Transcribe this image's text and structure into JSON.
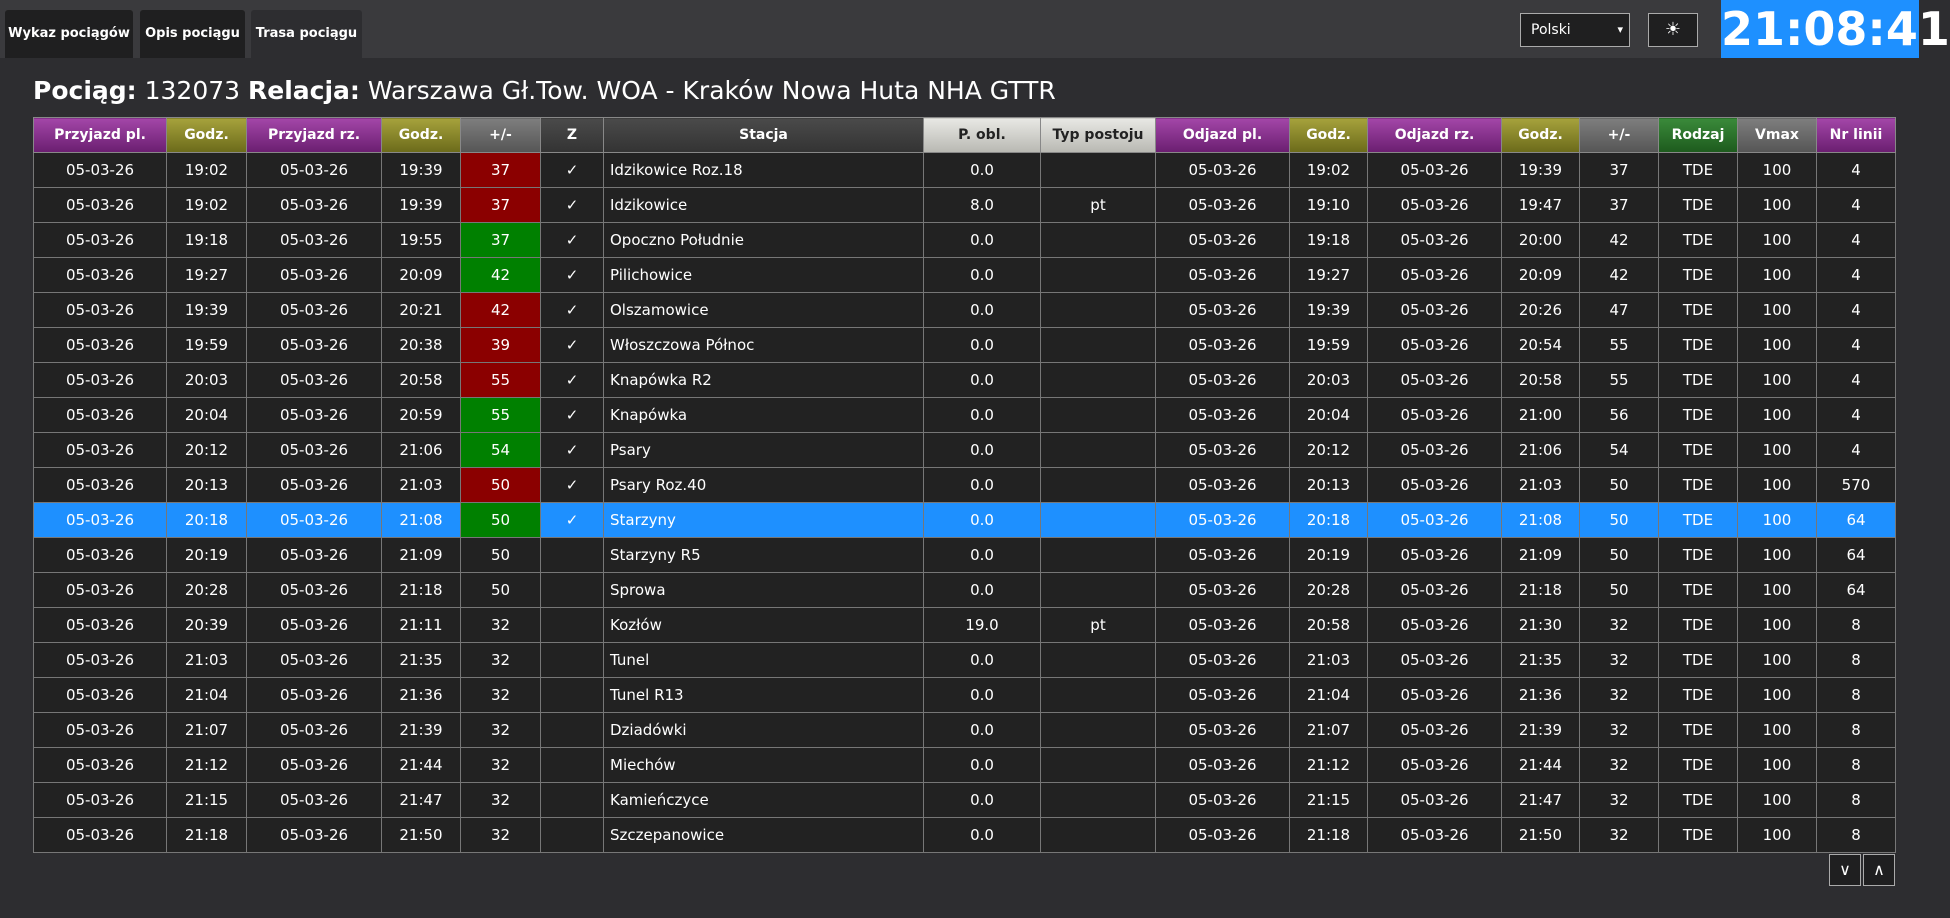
{
  "tabs": [
    "Wykaz pociągów",
    "Opis pociągu",
    "Trasa pociągu"
  ],
  "active_tab": 2,
  "language": "Polski",
  "theme_icon": "☀",
  "clock": "21:08:41",
  "header": {
    "train_label": "Pociąg:",
    "train_number": "132073",
    "route_label": "Relacja:",
    "route": "Warszawa Gł.Tow. WOA - Kraków Nowa Huta NHA GTTR"
  },
  "table": {
    "headers": [
      "Przyjazd pl.",
      "Godz.",
      "Przyjazd rz.",
      "Godz.",
      "+/-",
      "Z",
      "Stacja",
      "P. obl.",
      "Typ postoju",
      "Odjazd pl.",
      "Godz.",
      "Odjazd rz.",
      "Godz.",
      "+/-",
      "Rodzaj",
      "Vmax",
      "Nr linii"
    ],
    "header_colors": [
      "purple",
      "olive",
      "purple",
      "olive",
      "gray",
      "dark",
      "dark",
      "light",
      "light",
      "purple",
      "olive",
      "purple",
      "olive",
      "gray",
      "green",
      "gray",
      "purple"
    ],
    "rows": [
      [
        "05-03-26",
        "19:02",
        "05-03-26",
        "19:39",
        "37",
        "✓",
        "Idzikowice Roz.18",
        "0.0",
        null,
        "05-03-26",
        "19:02",
        "05-03-26",
        "19:39",
        "37",
        "TDE",
        "100",
        "4"
      ],
      [
        "05-03-26",
        "19:02",
        "05-03-26",
        "19:39",
        "37",
        "✓",
        "Idzikowice",
        "8.0",
        "pt",
        "05-03-26",
        "19:10",
        "05-03-26",
        "19:47",
        "37",
        "TDE",
        "100",
        "4"
      ],
      [
        "05-03-26",
        "19:18",
        "05-03-26",
        "19:55",
        "37",
        "✓",
        "Opoczno Południe",
        "0.0",
        null,
        "05-03-26",
        "19:18",
        "05-03-26",
        "20:00",
        "42",
        "TDE",
        "100",
        "4"
      ],
      [
        "05-03-26",
        "19:27",
        "05-03-26",
        "20:09",
        "42",
        "✓",
        "Pilichowice",
        "0.0",
        null,
        "05-03-26",
        "19:27",
        "05-03-26",
        "20:09",
        "42",
        "TDE",
        "100",
        "4"
      ],
      [
        "05-03-26",
        "19:39",
        "05-03-26",
        "20:21",
        "42",
        "✓",
        "Olszamowice",
        "0.0",
        null,
        "05-03-26",
        "19:39",
        "05-03-26",
        "20:26",
        "47",
        "TDE",
        "100",
        "4"
      ],
      [
        "05-03-26",
        "19:59",
        "05-03-26",
        "20:38",
        "39",
        "✓",
        "Włoszczowa Północ",
        "0.0",
        null,
        "05-03-26",
        "19:59",
        "05-03-26",
        "20:54",
        "55",
        "TDE",
        "100",
        "4"
      ],
      [
        "05-03-26",
        "20:03",
        "05-03-26",
        "20:58",
        "55",
        "✓",
        "Knapówka R2",
        "0.0",
        null,
        "05-03-26",
        "20:03",
        "05-03-26",
        "20:58",
        "55",
        "TDE",
        "100",
        "4"
      ],
      [
        "05-03-26",
        "20:04",
        "05-03-26",
        "20:59",
        "55",
        "✓",
        "Knapówka",
        "0.0",
        null,
        "05-03-26",
        "20:04",
        "05-03-26",
        "21:00",
        "56",
        "TDE",
        "100",
        "4"
      ],
      [
        "05-03-26",
        "20:12",
        "05-03-26",
        "21:06",
        "54",
        "✓",
        "Psary",
        "0.0",
        null,
        "05-03-26",
        "20:12",
        "05-03-26",
        "21:06",
        "54",
        "TDE",
        "100",
        "4"
      ],
      [
        "05-03-26",
        "20:13",
        "05-03-26",
        "21:03",
        "50",
        "✓",
        "Psary Roz.40",
        "0.0",
        null,
        "05-03-26",
        "20:13",
        "05-03-26",
        "21:03",
        "50",
        "TDE",
        "100",
        "570"
      ],
      [
        "05-03-26",
        "20:18",
        "05-03-26",
        "21:08",
        "50",
        "✓",
        "Starzyny",
        "0.0",
        null,
        "05-03-26",
        "20:18",
        "05-03-26",
        "21:08",
        "50",
        "TDE",
        "100",
        "64"
      ],
      [
        "05-03-26",
        "20:19",
        "05-03-26",
        "21:09",
        "50",
        null,
        "Starzyny R5",
        "0.0",
        null,
        "05-03-26",
        "20:19",
        "05-03-26",
        "21:09",
        "50",
        "TDE",
        "100",
        "64"
      ],
      [
        "05-03-26",
        "20:28",
        "05-03-26",
        "21:18",
        "50",
        null,
        "Sprowa",
        "0.0",
        null,
        "05-03-26",
        "20:28",
        "05-03-26",
        "21:18",
        "50",
        "TDE",
        "100",
        "64"
      ],
      [
        "05-03-26",
        "20:39",
        "05-03-26",
        "21:11",
        "32",
        null,
        "Kozłów",
        "19.0",
        "pt",
        "05-03-26",
        "20:58",
        "05-03-26",
        "21:30",
        "32",
        "TDE",
        "100",
        "8"
      ],
      [
        "05-03-26",
        "21:03",
        "05-03-26",
        "21:35",
        "32",
        null,
        "Tunel",
        "0.0",
        null,
        "05-03-26",
        "21:03",
        "05-03-26",
        "21:35",
        "32",
        "TDE",
        "100",
        "8"
      ],
      [
        "05-03-26",
        "21:04",
        "05-03-26",
        "21:36",
        "32",
        null,
        "Tunel R13",
        "0.0",
        null,
        "05-03-26",
        "21:04",
        "05-03-26",
        "21:36",
        "32",
        "TDE",
        "100",
        "8"
      ],
      [
        "05-03-26",
        "21:07",
        "05-03-26",
        "21:39",
        "32",
        null,
        "Dziadówki",
        "0.0",
        null,
        "05-03-26",
        "21:07",
        "05-03-26",
        "21:39",
        "32",
        "TDE",
        "100",
        "8"
      ],
      [
        "05-03-26",
        "21:12",
        "05-03-26",
        "21:44",
        "32",
        null,
        "Miechów",
        "0.0",
        null,
        "05-03-26",
        "21:12",
        "05-03-26",
        "21:44",
        "32",
        "TDE",
        "100",
        "8"
      ],
      [
        "05-03-26",
        "21:15",
        "05-03-26",
        "21:47",
        "32",
        null,
        "Kamieńczyce",
        "0.0",
        null,
        "05-03-26",
        "21:15",
        "05-03-26",
        "21:47",
        "32",
        "TDE",
        "100",
        "8"
      ],
      [
        "05-03-26",
        "21:18",
        "05-03-26",
        "21:50",
        "32",
        null,
        "Szczepanowice",
        "0.0",
        null,
        "05-03-26",
        "21:18",
        "05-03-26",
        "21:50",
        "32",
        "TDE",
        "100",
        "8"
      ]
    ],
    "delay_colors": [
      "#8b0000",
      "#8b0000",
      "#008000",
      "#008000",
      "#8b0000",
      "#8b0000",
      "#8b0000",
      "#008000",
      "#008000",
      "#8b0000",
      "#008000",
      null,
      null,
      null,
      null,
      null,
      null,
      null,
      null,
      null
    ],
    "selected_row": 10,
    "selected_color": "#1e90ff"
  },
  "scroll_buttons": [
    "∨",
    "∧"
  ]
}
